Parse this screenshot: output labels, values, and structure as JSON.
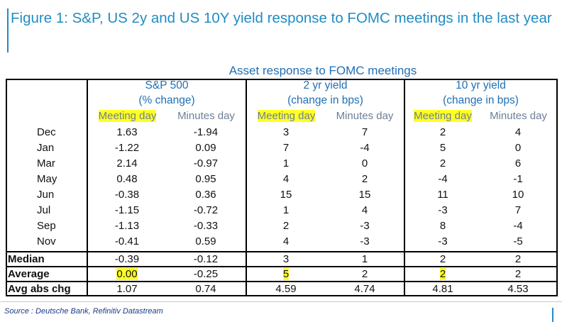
{
  "figure_title": "Figure 1: S&P, US 2y and US 10Y yield response to FOMC meetings in the last year",
  "table_title": "Asset response to FOMC meetings",
  "groups": [
    {
      "line1": "S&P 500",
      "line2": "(% change)"
    },
    {
      "line1": "2 yr yield",
      "line2": "(change in bps)"
    },
    {
      "line1": "10 yr yield",
      "line2": "(change in bps)"
    }
  ],
  "subheaders": [
    "Meeting day",
    "Minutes day",
    "Meeting day",
    "Minutes day",
    "Meeting day",
    "Minutes day"
  ],
  "rows": [
    {
      "label": "Dec",
      "values": [
        "1.63",
        "-1.94",
        "3",
        "7",
        "2",
        "4"
      ]
    },
    {
      "label": "Jan",
      "values": [
        "-1.22",
        "0.09",
        "7",
        "-4",
        "5",
        "0"
      ]
    },
    {
      "label": "Mar",
      "values": [
        "2.14",
        "-0.97",
        "1",
        "0",
        "2",
        "6"
      ]
    },
    {
      "label": "May",
      "values": [
        "0.48",
        "0.95",
        "4",
        "2",
        "-4",
        "-1"
      ]
    },
    {
      "label": "Jun",
      "values": [
        "-0.38",
        "0.36",
        "15",
        "15",
        "11",
        "10"
      ]
    },
    {
      "label": "Jul",
      "values": [
        "-1.15",
        "-0.72",
        "1",
        "4",
        "-3",
        "7"
      ]
    },
    {
      "label": "Sep",
      "values": [
        "-1.13",
        "-0.33",
        "2",
        "-3",
        "8",
        "-4"
      ]
    },
    {
      "label": "Nov",
      "values": [
        "-0.41",
        "0.59",
        "4",
        "-3",
        "-3",
        "-5"
      ]
    }
  ],
  "summary": [
    {
      "label": "Median",
      "values": [
        "-0.39",
        "-0.12",
        "3",
        "1",
        "2",
        "2"
      ]
    },
    {
      "label": "Average",
      "values": [
        "0.00",
        "-0.25",
        "5",
        "2",
        "2",
        "2"
      ]
    },
    {
      "label": "Avg abs chg",
      "values": [
        "1.07",
        "0.74",
        "4.59",
        "4.74",
        "4.81",
        "4.53"
      ]
    }
  ],
  "highlight_color": "#ffff26",
  "accent_color": "#1f8dc4",
  "source": "Source : Deutsche Bank, Refinitiv Datastream"
}
